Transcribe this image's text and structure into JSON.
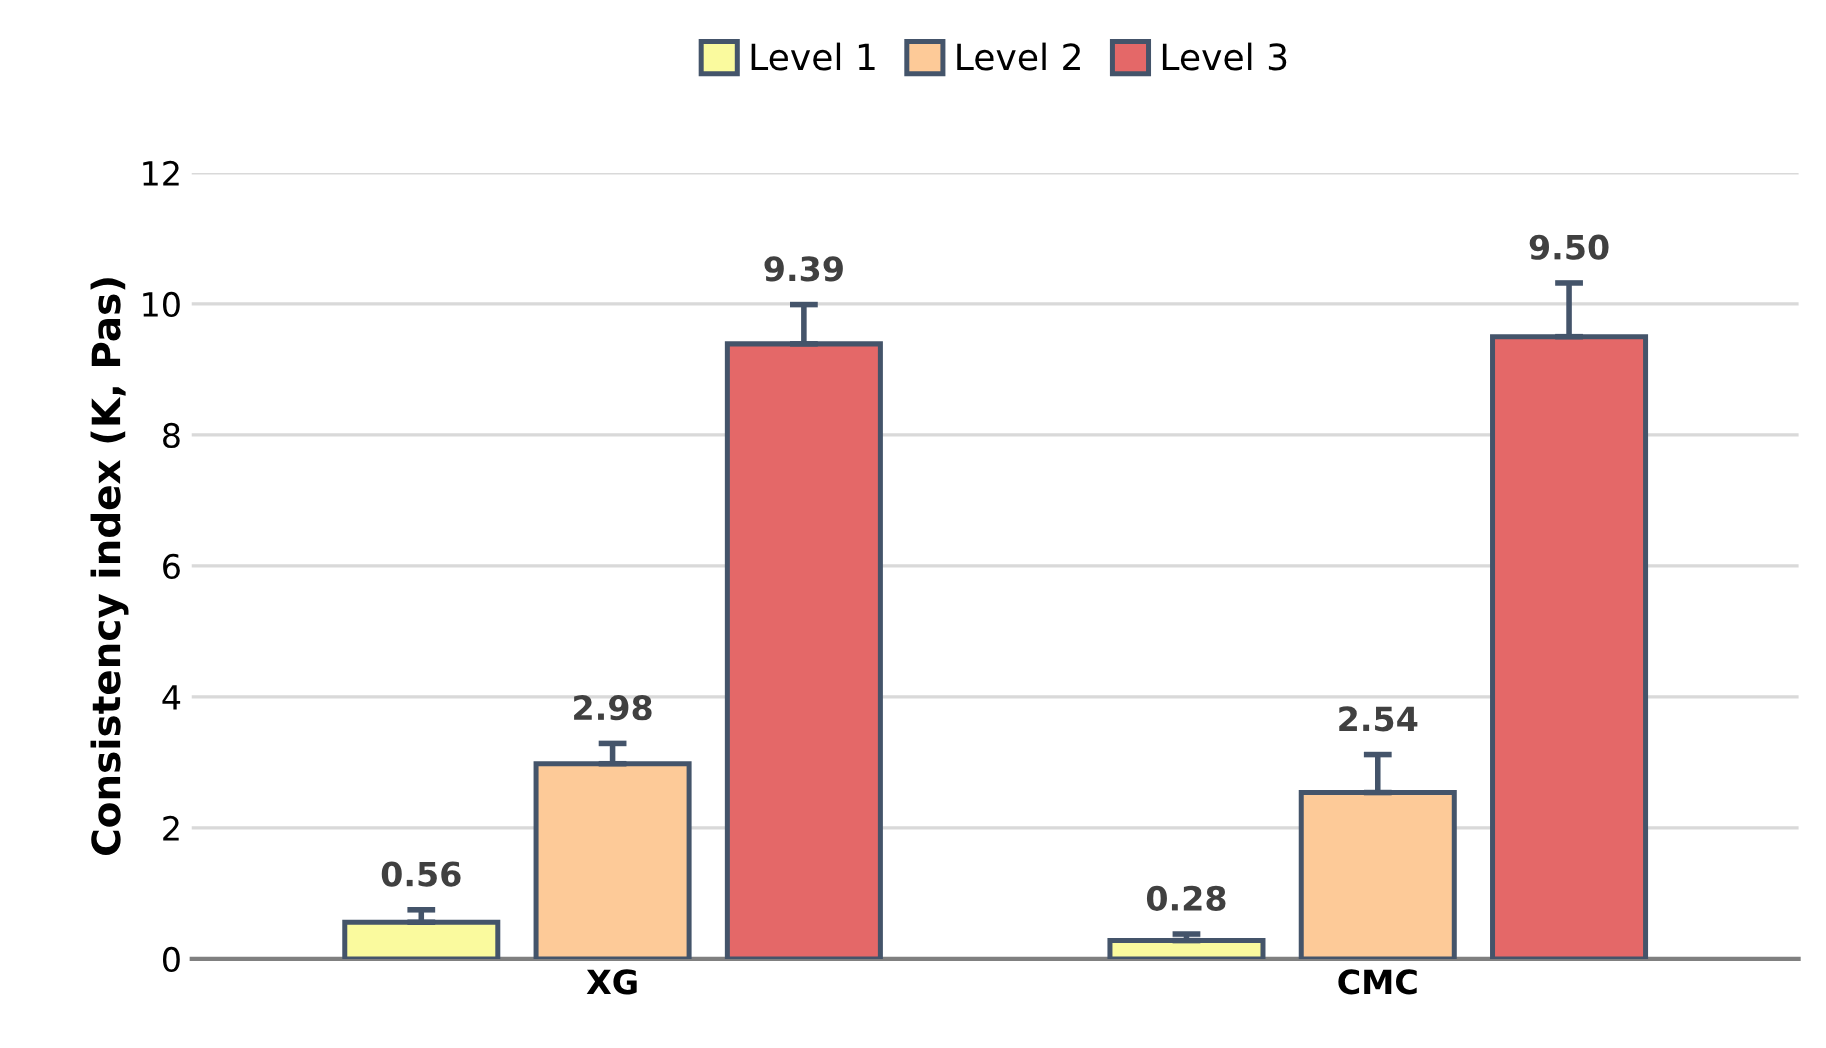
{
  "chart_data": {
    "type": "bar",
    "ylabel": "Consistency index (K, Pas)",
    "categories": [
      "XG",
      "CMC"
    ],
    "series": [
      {
        "name": "Level 1",
        "color": "#fafa9e",
        "values": [
          0.56,
          0.28
        ],
        "errors": [
          0.19,
          0.1
        ],
        "value_labels": [
          "0.56",
          "0.28"
        ]
      },
      {
        "name": "Level 2",
        "color": "#fdca98",
        "values": [
          2.98,
          2.54
        ],
        "errors": [
          0.31,
          0.58
        ],
        "value_labels": [
          "2.98",
          "2.54"
        ]
      },
      {
        "name": "Level 3",
        "color": "#e46868",
        "values": [
          9.39,
          9.5
        ],
        "errors": [
          0.6,
          0.82
        ],
        "value_labels": [
          "9.39",
          "9.50"
        ]
      }
    ],
    "ylim": [
      0,
      12
    ],
    "yticks": [
      0,
      2,
      4,
      6,
      8,
      10,
      12
    ],
    "grid": "y",
    "legend": "top"
  }
}
